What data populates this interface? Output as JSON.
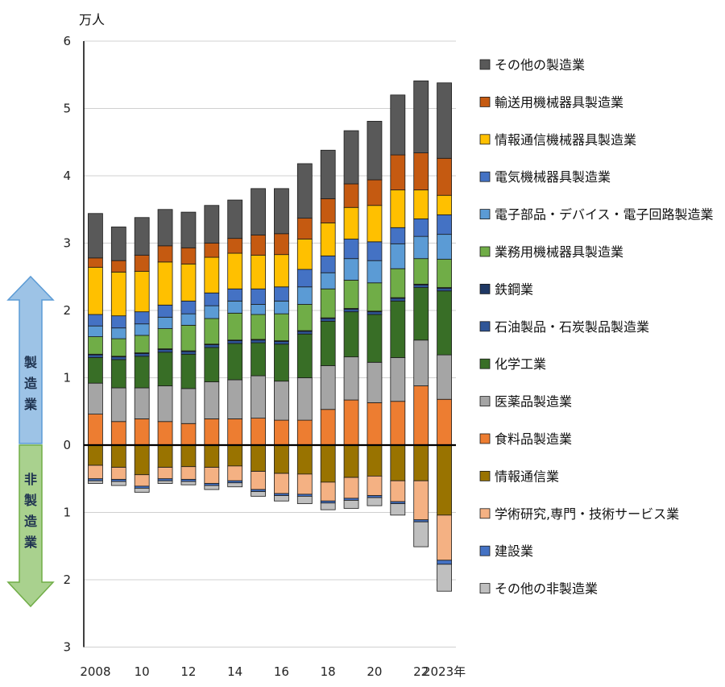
{
  "chart_data": {
    "type": "bar",
    "stacked": true,
    "unit": "万人",
    "xlabel": "",
    "ylabel": "",
    "grid": true,
    "legend_position": "right",
    "categories": [
      "2008",
      "2009",
      "2010",
      "2011",
      "2012",
      "2013",
      "2014",
      "2015",
      "2016",
      "2017",
      "2018",
      "2019",
      "2020",
      "2021",
      "2022",
      "2023"
    ],
    "x_tick_labels": [
      "2008",
      "",
      "10",
      "",
      "12",
      "",
      "14",
      "",
      "16",
      "",
      "18",
      "",
      "20",
      "",
      "22",
      "2023年"
    ],
    "y_positive_range": [
      0,
      6
    ],
    "y_negative_range": [
      0,
      3
    ],
    "y_ticks_positive": [
      "0",
      "1",
      "2",
      "3",
      "4",
      "5",
      "6"
    ],
    "y_ticks_negative": [
      "1",
      "2",
      "3"
    ],
    "side_labels": {
      "upper": "製造業",
      "lower": "非製造業"
    },
    "positive_series": [
      {
        "name": "食料品製造業",
        "color": "#ED7D31",
        "values": [
          0.46,
          0.35,
          0.39,
          0.35,
          0.32,
          0.39,
          0.39,
          0.4,
          0.37,
          0.37,
          0.53,
          0.67,
          0.63,
          0.65,
          0.88,
          0.68
        ]
      },
      {
        "name": "医薬品製造業",
        "color": "#A5A5A5",
        "values": [
          0.46,
          0.5,
          0.46,
          0.53,
          0.52,
          0.55,
          0.58,
          0.63,
          0.58,
          0.63,
          0.65,
          0.64,
          0.6,
          0.65,
          0.68,
          0.66
        ]
      },
      {
        "name": "化学工業",
        "color": "#386E26",
        "values": [
          0.38,
          0.42,
          0.47,
          0.5,
          0.51,
          0.51,
          0.54,
          0.49,
          0.55,
          0.65,
          0.66,
          0.67,
          0.71,
          0.84,
          0.78,
          0.95
        ]
      },
      {
        "name": "石油製品・石炭製品製造業",
        "color": "#2F5597",
        "values": [
          0.04,
          0.04,
          0.04,
          0.04,
          0.04,
          0.04,
          0.04,
          0.04,
          0.04,
          0.04,
          0.04,
          0.04,
          0.04,
          0.04,
          0.04,
          0.04
        ]
      },
      {
        "name": "鉄鋼業",
        "color": "#1F3864",
        "values": [
          0.01,
          0.01,
          0.01,
          0.01,
          0.01,
          0.01,
          0.01,
          0.01,
          0.01,
          0.01,
          0.01,
          0.01,
          0.01,
          0.01,
          0.01,
          0.01
        ]
      },
      {
        "name": "業務用機械器具製造業",
        "color": "#70AD47",
        "values": [
          0.26,
          0.26,
          0.26,
          0.3,
          0.38,
          0.38,
          0.4,
          0.37,
          0.4,
          0.39,
          0.43,
          0.42,
          0.42,
          0.43,
          0.38,
          0.42
        ]
      },
      {
        "name": "電子部品・デバイス・電子回路製造業",
        "color": "#5B9BD5",
        "values": [
          0.16,
          0.16,
          0.17,
          0.17,
          0.17,
          0.19,
          0.18,
          0.15,
          0.19,
          0.26,
          0.24,
          0.32,
          0.33,
          0.37,
          0.33,
          0.37
        ]
      },
      {
        "name": "電気機械器具製造業",
        "color": "#4472C4",
        "values": [
          0.17,
          0.18,
          0.18,
          0.18,
          0.19,
          0.19,
          0.18,
          0.23,
          0.21,
          0.26,
          0.25,
          0.29,
          0.28,
          0.24,
          0.26,
          0.29
        ]
      },
      {
        "name": "情報通信機械器具製造業",
        "color": "#FFC000",
        "values": [
          0.7,
          0.65,
          0.6,
          0.64,
          0.55,
          0.53,
          0.53,
          0.5,
          0.48,
          0.45,
          0.49,
          0.47,
          0.54,
          0.56,
          0.43,
          0.29
        ]
      },
      {
        "name": "輸送用機械器具製造業",
        "color": "#C55A11",
        "values": [
          0.14,
          0.17,
          0.24,
          0.24,
          0.24,
          0.21,
          0.22,
          0.3,
          0.31,
          0.31,
          0.36,
          0.35,
          0.38,
          0.52,
          0.55,
          0.55
        ]
      },
      {
        "name": "その他の製造業",
        "color": "#595959",
        "values": [
          0.66,
          0.5,
          0.56,
          0.54,
          0.53,
          0.56,
          0.57,
          0.69,
          0.67,
          0.81,
          0.72,
          0.79,
          0.87,
          0.89,
          1.07,
          1.12
        ]
      }
    ],
    "negative_series": [
      {
        "name": "情報通信業",
        "color": "#997300",
        "values": [
          0.3,
          0.33,
          0.44,
          0.33,
          0.32,
          0.33,
          0.31,
          0.39,
          0.42,
          0.43,
          0.55,
          0.48,
          0.46,
          0.53,
          0.53,
          1.04
        ]
      },
      {
        "name": "学術研究,専門・技術サービス業",
        "color": "#F4B183",
        "values": [
          0.2,
          0.18,
          0.17,
          0.17,
          0.19,
          0.24,
          0.22,
          0.27,
          0.3,
          0.3,
          0.28,
          0.31,
          0.29,
          0.31,
          0.58,
          0.67
        ]
      },
      {
        "name": "建設業",
        "color": "#4472C4",
        "values": [
          0.03,
          0.03,
          0.03,
          0.03,
          0.03,
          0.03,
          0.03,
          0.03,
          0.03,
          0.03,
          0.03,
          0.03,
          0.03,
          0.03,
          0.03,
          0.06
        ]
      },
      {
        "name": "その他の非製造業",
        "color": "#BFBFBF",
        "values": [
          0.04,
          0.06,
          0.06,
          0.04,
          0.05,
          0.06,
          0.06,
          0.07,
          0.08,
          0.11,
          0.1,
          0.12,
          0.12,
          0.17,
          0.37,
          0.4
        ]
      }
    ],
    "legend_order": [
      "その他の製造業",
      "輸送用機械器具製造業",
      "情報通信機械器具製造業",
      "電気機械器具製造業",
      "電子部品・デバイス・電子回路製造業",
      "業務用機械器具製造業",
      "鉄鋼業",
      "石油製品・石炭製品製造業",
      "化学工業",
      "医薬品製造業",
      "食料品製造業",
      "情報通信業",
      "学術研究,専門・技術サービス業",
      "建設業",
      "その他の非製造業"
    ]
  }
}
